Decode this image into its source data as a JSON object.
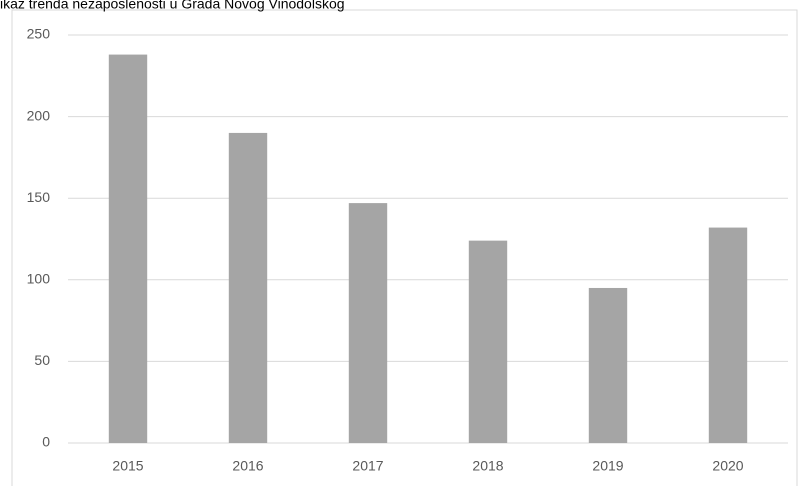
{
  "chart_data": {
    "type": "bar",
    "title": "ikaz trenda nezaposlenosti u Grada Novog Vinodolskog",
    "categories": [
      "2015",
      "2016",
      "2017",
      "2018",
      "2019",
      "2020"
    ],
    "values": [
      238,
      190,
      147,
      124,
      95,
      132
    ],
    "color": "#a5a5a5",
    "ylim": [
      0,
      250
    ],
    "yticks": [
      0,
      50,
      100,
      150,
      200,
      250
    ],
    "grid": true
  }
}
